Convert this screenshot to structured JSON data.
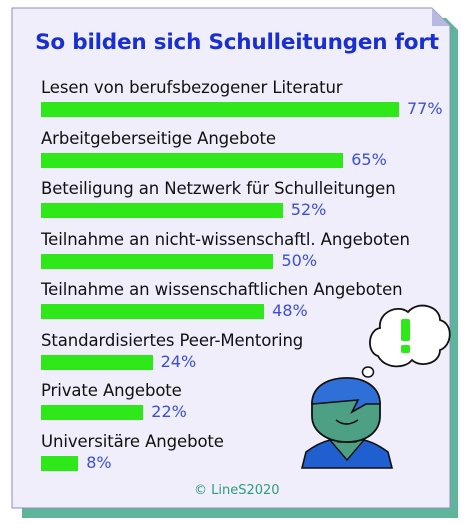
{
  "chart_data": {
    "type": "bar",
    "orientation": "horizontal",
    "title": "So bilden sich Schulleitungen fort",
    "categories": [
      "Lesen von berufsbezogener Literatur",
      "Arbeitgeberseitige Angebote",
      "Beteiligung an Netzwerk für Schulleitungen",
      "Teilnahme an nicht-wissenschaftl. Angeboten",
      "Teilnahme an wissenschaftlichen Angeboten",
      "Standardisiertes Peer-Mentoring",
      "Private Angebote",
      "Universitäre Angebote"
    ],
    "values": [
      77,
      65,
      52,
      50,
      48,
      24,
      22,
      8
    ],
    "value_labels": [
      "77%",
      "65%",
      "52%",
      "50%",
      "48%",
      "24%",
      "22%",
      "8%"
    ],
    "xlim": [
      0,
      100
    ],
    "grid": false,
    "legend": "none"
  },
  "footer": {
    "copyright": "© LineS2020"
  },
  "icons": {
    "thought_bubble": "exclamation-thought-bubble-icon",
    "person": "thinking-person-icon"
  },
  "colors": {
    "title": "#1a2fd1",
    "bar": "#2ee81a",
    "value_label": "#3b4fd6",
    "card_background": "#efeefa",
    "card_shadow": "#5fb59a",
    "copyright": "#2d9e7a"
  }
}
